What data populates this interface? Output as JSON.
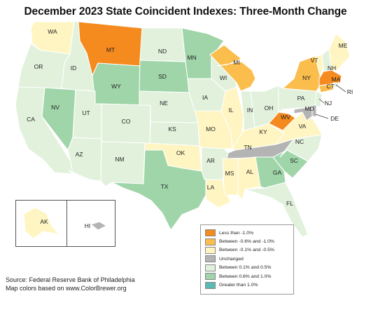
{
  "title": "December 2023 State Coincident Indexes: Three-Month Change",
  "legend": [
    {
      "label": "Less than -1.0%",
      "color": "#f58a1f"
    },
    {
      "label": "Between -0.6% and -1.0%",
      "color": "#fbbd4c"
    },
    {
      "label": "Between -0.1% and -0.5%",
      "color": "#fff5c2"
    },
    {
      "label": "Unchanged",
      "color": "#b4b4b4"
    },
    {
      "label": "Between 0.1% and 0.5%",
      "color": "#e1f1dc"
    },
    {
      "label": "Between 0.6% and 1.0%",
      "color": "#9fd5a9"
    },
    {
      "label": "Greater than 1.0%",
      "color": "#5bb9b3"
    }
  ],
  "states": [
    {
      "abbr": "WA",
      "category": 2
    },
    {
      "abbr": "OR",
      "category": 4
    },
    {
      "abbr": "CA",
      "category": 4
    },
    {
      "abbr": "ID",
      "category": 4
    },
    {
      "abbr": "NV",
      "category": 5
    },
    {
      "abbr": "MT",
      "category": 0
    },
    {
      "abbr": "WY",
      "category": 5
    },
    {
      "abbr": "UT",
      "category": 4
    },
    {
      "abbr": "AZ",
      "category": 4
    },
    {
      "abbr": "CO",
      "category": 4
    },
    {
      "abbr": "NM",
      "category": 4
    },
    {
      "abbr": "ND",
      "category": 4
    },
    {
      "abbr": "SD",
      "category": 5
    },
    {
      "abbr": "NE",
      "category": 4
    },
    {
      "abbr": "KS",
      "category": 4
    },
    {
      "abbr": "OK",
      "category": 2
    },
    {
      "abbr": "TX",
      "category": 5
    },
    {
      "abbr": "MN",
      "category": 5
    },
    {
      "abbr": "IA",
      "category": 4
    },
    {
      "abbr": "MO",
      "category": 2
    },
    {
      "abbr": "AR",
      "category": 4
    },
    {
      "abbr": "LA",
      "category": 2
    },
    {
      "abbr": "WI",
      "category": 4
    },
    {
      "abbr": "IL",
      "category": 2
    },
    {
      "abbr": "MI",
      "category": 1
    },
    {
      "abbr": "IN",
      "category": 4
    },
    {
      "abbr": "OH",
      "category": 4
    },
    {
      "abbr": "KY",
      "category": 2
    },
    {
      "abbr": "TN",
      "category": 3
    },
    {
      "abbr": "MS",
      "category": 2
    },
    {
      "abbr": "AL",
      "category": 2
    },
    {
      "abbr": "GA",
      "category": 5
    },
    {
      "abbr": "FL",
      "category": 4
    },
    {
      "abbr": "SC",
      "category": 5
    },
    {
      "abbr": "NC",
      "category": 4
    },
    {
      "abbr": "VA",
      "category": 2
    },
    {
      "abbr": "WV",
      "category": 0
    },
    {
      "abbr": "PA",
      "category": 4
    },
    {
      "abbr": "NY",
      "category": 1
    },
    {
      "abbr": "VT",
      "category": 2
    },
    {
      "abbr": "NH",
      "category": 4
    },
    {
      "abbr": "ME",
      "category": 2
    },
    {
      "abbr": "MA",
      "category": 0
    },
    {
      "abbr": "RI",
      "category": 4
    },
    {
      "abbr": "CT",
      "category": 1
    },
    {
      "abbr": "NJ",
      "category": 4
    },
    {
      "abbr": "DE",
      "category": 3
    },
    {
      "abbr": "MD",
      "category": 3
    },
    {
      "abbr": "AK",
      "category": 2
    },
    {
      "abbr": "HI",
      "category": 3
    }
  ],
  "source_line1": "Source: Federal Reserve Bank of Philadelphia",
  "source_line2": "Map colors based on www.ColorBrewer.org"
}
